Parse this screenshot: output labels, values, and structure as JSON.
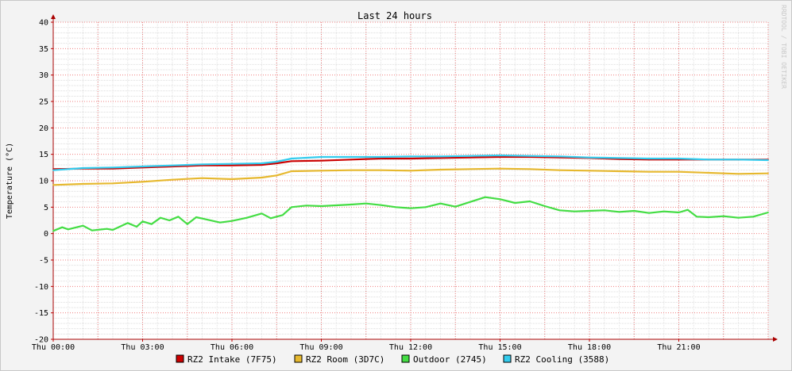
{
  "chart_data": {
    "type": "line",
    "title": "Last 24 hours",
    "ylabel": "Temperature (°C)",
    "watermark": "RRDTOOL / TOBI OETIKER",
    "ylim": [
      -20,
      40
    ],
    "yticks": [
      40,
      35,
      30,
      25,
      20,
      15,
      10,
      5,
      0,
      -5,
      -10,
      -15,
      -20
    ],
    "xlim": [
      0,
      24
    ],
    "xticks": [
      {
        "h": 0,
        "label": "Thu 00:00"
      },
      {
        "h": 3,
        "label": "Thu 03:00"
      },
      {
        "h": 6,
        "label": "Thu 06:00"
      },
      {
        "h": 9,
        "label": "Thu 09:00"
      },
      {
        "h": 12,
        "label": "Thu 12:00"
      },
      {
        "h": 15,
        "label": "Thu 15:00"
      },
      {
        "h": 18,
        "label": "Thu 18:00"
      },
      {
        "h": 21,
        "label": "Thu 21:00"
      }
    ],
    "grid": true,
    "legend_position": "bottom",
    "series": [
      {
        "name": "RZ2 Intake (7F75)",
        "color": "#cc0000",
        "x": [
          0,
          1,
          2,
          3,
          4,
          5,
          6,
          7,
          7.5,
          8,
          9,
          10,
          11,
          12,
          13,
          14,
          15,
          16,
          17,
          18,
          19,
          20,
          21,
          22,
          23,
          24
        ],
        "y": [
          12.2,
          12.3,
          12.3,
          12.5,
          12.7,
          12.9,
          12.9,
          13.0,
          13.3,
          13.7,
          13.8,
          14.0,
          14.2,
          14.2,
          14.3,
          14.4,
          14.5,
          14.5,
          14.4,
          14.3,
          14.1,
          14.0,
          14.0,
          14.0,
          14.0,
          14.0
        ]
      },
      {
        "name": "RZ2 Room (3D7C)",
        "color": "#e6b82e",
        "x": [
          0,
          1,
          2,
          3,
          4,
          5,
          6,
          7,
          7.5,
          8,
          9,
          10,
          11,
          12,
          13,
          14,
          15,
          16,
          17,
          18,
          19,
          20,
          21,
          22,
          23,
          24
        ],
        "y": [
          9.2,
          9.4,
          9.5,
          9.8,
          10.2,
          10.5,
          10.3,
          10.6,
          11.0,
          11.8,
          11.9,
          12.0,
          12.0,
          11.9,
          12.1,
          12.2,
          12.3,
          12.2,
          12.0,
          11.9,
          11.8,
          11.7,
          11.7,
          11.5,
          11.3,
          11.4
        ]
      },
      {
        "name": "Outdoor (2745)",
        "color": "#44dd44",
        "x": [
          0,
          0.3,
          0.5,
          1,
          1.3,
          1.8,
          2,
          2.5,
          2.8,
          3,
          3.3,
          3.6,
          3.9,
          4.2,
          4.5,
          4.8,
          5.2,
          5.6,
          6,
          6.5,
          7,
          7.3,
          7.7,
          8,
          8.5,
          9,
          10,
          10.5,
          11,
          11.5,
          12,
          12.5,
          13,
          13.5,
          14,
          14.5,
          15,
          15.5,
          16,
          16.5,
          17,
          17.5,
          18,
          18.5,
          19,
          19.5,
          20,
          20.5,
          21,
          21.3,
          21.6,
          22,
          22.5,
          23,
          23.5,
          24
        ],
        "y": [
          0.5,
          1.2,
          0.8,
          1.5,
          0.6,
          0.9,
          0.7,
          2.0,
          1.3,
          2.3,
          1.8,
          3.0,
          2.5,
          3.2,
          1.8,
          3.1,
          2.6,
          2.1,
          2.4,
          3.0,
          3.8,
          2.9,
          3.5,
          5.0,
          5.3,
          5.2,
          5.5,
          5.7,
          5.4,
          5.0,
          4.8,
          5.0,
          5.7,
          5.1,
          6.0,
          6.9,
          6.5,
          5.8,
          6.1,
          5.2,
          4.4,
          4.2,
          4.3,
          4.4,
          4.1,
          4.3,
          3.9,
          4.2,
          4.0,
          4.5,
          3.2,
          3.1,
          3.3,
          3.0,
          3.2,
          4.0
        ]
      },
      {
        "name": "RZ2 Cooling (3588)",
        "color": "#33ccee",
        "x": [
          0,
          1,
          2,
          3,
          4,
          5,
          6,
          7,
          7.5,
          8,
          9,
          10,
          11,
          12,
          13,
          14,
          15,
          16,
          17,
          18,
          19,
          20,
          21,
          22,
          23,
          24
        ],
        "y": [
          12.0,
          12.4,
          12.5,
          12.7,
          12.9,
          13.1,
          13.2,
          13.3,
          13.6,
          14.2,
          14.5,
          14.5,
          14.5,
          14.6,
          14.6,
          14.7,
          14.8,
          14.7,
          14.6,
          14.4,
          14.3,
          14.2,
          14.2,
          14.0,
          14.0,
          13.9
        ]
      }
    ]
  }
}
